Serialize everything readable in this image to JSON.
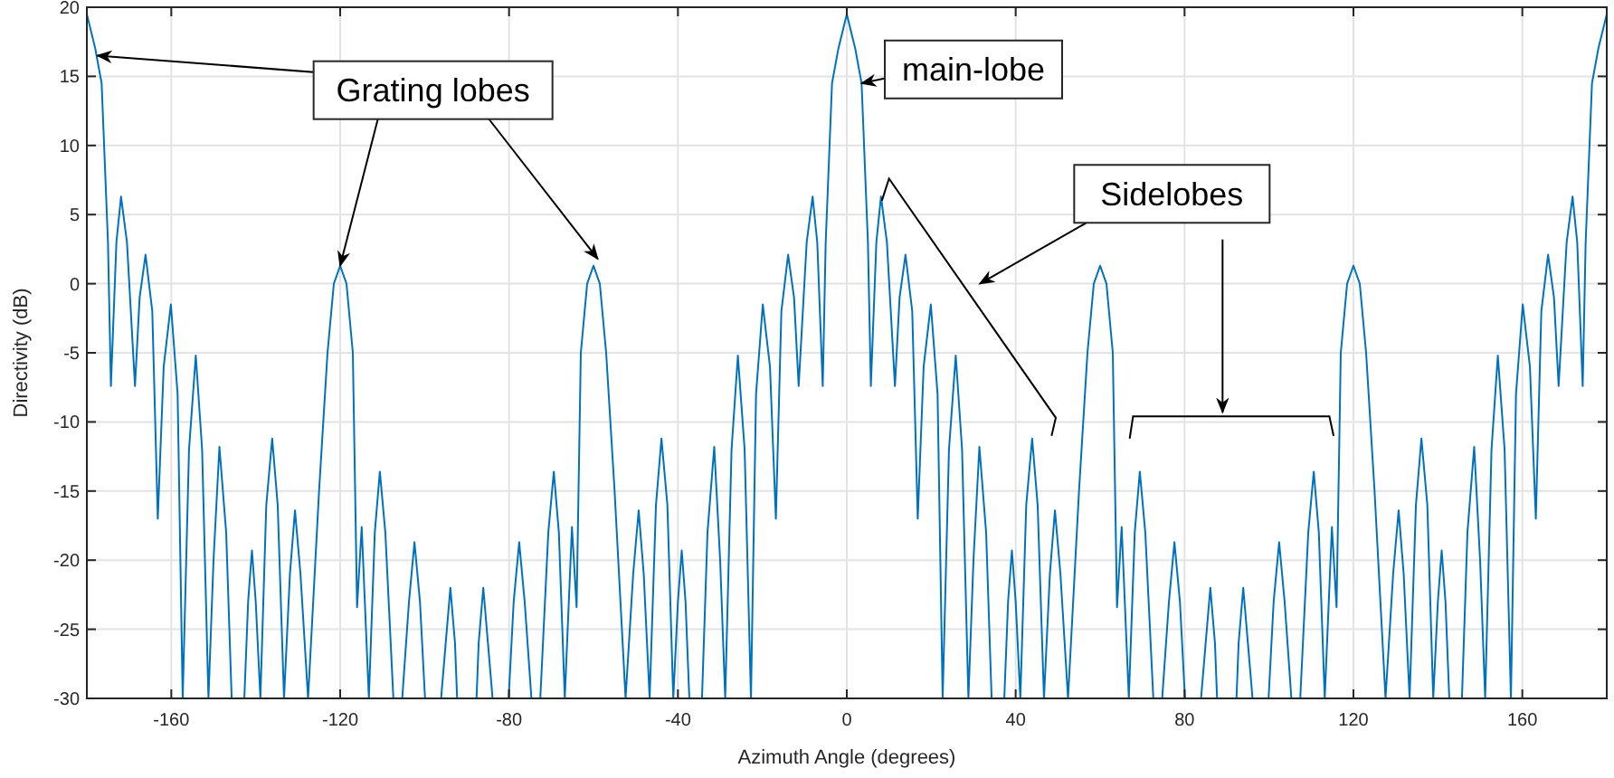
{
  "chart_data": {
    "type": "line",
    "xlabel": "Azimuth Angle (degrees)",
    "ylabel": "Directivity (dB)",
    "xlim": [
      -180,
      180
    ],
    "ylim": [
      -30,
      20
    ],
    "xticks": [
      -160,
      -120,
      -80,
      -40,
      0,
      40,
      80,
      120,
      160
    ],
    "yticks": [
      -30,
      -25,
      -20,
      -15,
      -10,
      -5,
      0,
      5,
      10,
      15,
      20
    ],
    "grid": true,
    "marker": "none",
    "line_style": "solid",
    "annotations": [
      {
        "text": "Grating lobes",
        "x": -120,
        "y": 1.3
      },
      {
        "text": "main-lobe",
        "x": 3.5,
        "y": 14.5
      },
      "Sidelobes"
    ],
    "series": [
      {
        "color": "#0072bd",
        "x": [
          -180,
          -178,
          -176.5,
          -175,
          -174.3,
          -173,
          -171.9,
          -170.5,
          -168.6,
          -167.5,
          -166.1,
          -164.5,
          -163.2,
          -161.8,
          -160.1,
          -158.5,
          -157.3,
          -155.8,
          -154.2,
          -152.7,
          -151.2,
          -150,
          -148.6,
          -147,
          -145.7,
          -142.7,
          -141.8,
          -140.9,
          -140,
          -138.9,
          -137.5,
          -136.1,
          -134.8,
          -133.3,
          -131.9,
          -130.7,
          -129.4,
          -127.6,
          -125,
          -123,
          -121.5,
          -120,
          -118.5,
          -117,
          -116,
          -114.9,
          -113.2,
          -111.8,
          -110.6,
          -109.3,
          -107.4,
          -105.3,
          -103.7,
          -102.4,
          -101.1,
          -99.9,
          -96.1,
          -95,
          -93.9,
          -92.8,
          -92.3,
          -87.7,
          -87.2,
          -86.1,
          -85,
          -83.9,
          -80.1,
          -78.9,
          -77.6,
          -76.3,
          -74.7,
          -72.6,
          -70.7,
          -69.4,
          -68.2,
          -66.8,
          -65.1,
          -64,
          -63,
          -61.5,
          -60,
          -58.5,
          -57,
          -55,
          -52.4,
          -50.6,
          -49.3,
          -48.1,
          -46.7,
          -45.2,
          -43.9,
          -42.5,
          -41.1,
          -40,
          -39.1,
          -38.2,
          -37.3,
          -34.3,
          -33,
          -31.4,
          -30,
          -28.8,
          -27.3,
          -25.8,
          -24.2,
          -22.7,
          -21.5,
          -19.9,
          -18.2,
          -16.8,
          -15.5,
          -13.9,
          -12.5,
          -11.4,
          -9.5,
          -8.1,
          -7,
          -5.7,
          -5,
          -3.5,
          -2,
          0,
          2,
          3.5,
          5,
          5.7,
          7,
          8.1,
          9.5,
          11.4,
          12.5,
          13.9,
          15.5,
          16.8,
          18.2,
          19.9,
          21.5,
          22.7,
          24.2,
          25.8,
          27.3,
          28.8,
          30,
          31.4,
          33,
          34.3,
          37.3,
          38.2,
          39.1,
          40,
          41.1,
          42.5,
          43.9,
          45.2,
          46.7,
          48.1,
          49.3,
          50.6,
          52.4,
          55,
          57,
          58.5,
          60,
          61.5,
          63,
          64,
          65.1,
          66.8,
          68.2,
          69.4,
          70.7,
          72.6,
          74.7,
          76.3,
          77.6,
          78.9,
          80.1,
          83.9,
          85,
          86.1,
          87.2,
          87.7,
          92.3,
          92.8,
          93.9,
          95,
          96.1,
          99.9,
          101.1,
          102.4,
          103.7,
          105.3,
          107.4,
          109.3,
          110.6,
          111.8,
          113.2,
          114.9,
          116,
          117,
          118.5,
          120,
          121.5,
          123,
          125,
          127.6,
          129.4,
          130.7,
          131.9,
          133.3,
          134.8,
          136.1,
          137.5,
          138.9,
          140,
          140.9,
          141.8,
          142.7,
          145.7,
          147,
          148.6,
          150,
          151.2,
          152.7,
          154.2,
          155.8,
          157.3,
          158.5,
          160.1,
          161.8,
          163.2,
          164.5,
          166.1,
          167.5,
          168.6,
          170.5,
          171.9,
          173,
          174.3,
          175,
          176.5,
          178,
          180
        ],
        "values": [
          19.5,
          17,
          14.5,
          3,
          -7.4,
          3,
          6.3,
          3,
          -7.4,
          -1,
          2.1,
          -2,
          -17,
          -6,
          -1.5,
          -8,
          -30,
          -12,
          -5.2,
          -12,
          -30,
          -20,
          -11.8,
          -18,
          -30,
          -30,
          -23,
          -19.3,
          -23,
          -30,
          -16,
          -11.2,
          -16,
          -30,
          -21,
          -16.4,
          -21,
          -30,
          -15,
          -5,
          0,
          1.3,
          0,
          -5,
          -23.4,
          -17.6,
          -30,
          -18,
          -13.6,
          -18,
          -30,
          -30,
          -23,
          -18.7,
          -23,
          -30,
          -30,
          -26,
          -22,
          -26,
          -30,
          -30,
          -26,
          -22,
          -26,
          -30,
          -30,
          -23,
          -18.7,
          -23,
          -30,
          -30,
          -18,
          -13.6,
          -18,
          -30,
          -17.6,
          -23.4,
          -5,
          0,
          1.3,
          0,
          -5,
          -15,
          -30,
          -21,
          -16.4,
          -21,
          -30,
          -16,
          -11.2,
          -16,
          -30,
          -23,
          -19.3,
          -23,
          -30,
          -30,
          -18,
          -11.8,
          -20,
          -30,
          -12,
          -5.2,
          -12,
          -30,
          -8,
          -1.5,
          -6,
          -17,
          -2,
          2.1,
          -1,
          -7.4,
          3,
          6.3,
          3,
          -7.4,
          3,
          14.5,
          17,
          19.5,
          17,
          14.5,
          3,
          -7.4,
          3,
          6.3,
          3,
          -7.4,
          -1,
          2.1,
          -2,
          -17,
          -6,
          -1.5,
          -8,
          -30,
          -12,
          -5.2,
          -12,
          -30,
          -20,
          -11.8,
          -18,
          -30,
          -30,
          -23,
          -19.3,
          -23,
          -30,
          -16,
          -11.2,
          -16,
          -30,
          -21,
          -16.4,
          -21,
          -30,
          -15,
          -5,
          0,
          1.3,
          0,
          -5,
          -23.4,
          -17.6,
          -30,
          -18,
          -13.6,
          -18,
          -30,
          -30,
          -23,
          -18.7,
          -23,
          -30,
          -30,
          -26,
          -22,
          -26,
          -30,
          -30,
          -26,
          -22,
          -26,
          -30,
          -30,
          -23,
          -18.7,
          -23,
          -30,
          -30,
          -18,
          -13.6,
          -18,
          -30,
          -17.6,
          -23.4,
          -5,
          0,
          1.3,
          0,
          -5,
          -15,
          -30,
          -21,
          -16.4,
          -21,
          -30,
          -16,
          -11.2,
          -16,
          -30,
          -23,
          -19.3,
          -23,
          -30,
          -30,
          -18,
          -11.8,
          -20,
          -30,
          -12,
          -5.2,
          -12,
          -30,
          -8,
          -1.5,
          -6,
          -17,
          -2,
          2.1,
          -1,
          -7.4,
          3,
          6.3,
          3,
          -7.4,
          3,
          14.5,
          17,
          19.5
        ]
      }
    ]
  }
}
